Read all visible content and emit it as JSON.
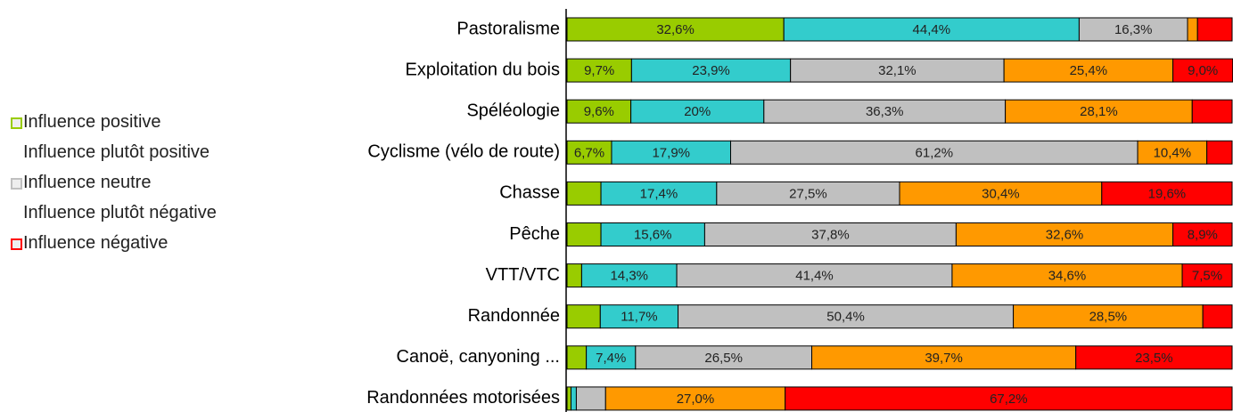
{
  "chart_data": {
    "type": "stacked_barh",
    "categories": [
      "Pastoralisme",
      "Exploitation du bois",
      "Spéléologie",
      "Cyclisme (vélo de route)",
      "Chasse",
      "Pêche",
      "VTT/VTC",
      "Randonnée",
      "Canoë, canyoning ...",
      "Randonnées motorisées"
    ],
    "xlim": [
      0,
      100
    ],
    "series": [
      {
        "name": "Influence positive",
        "color": "#99cc00",
        "values": [
          32.6,
          9.7,
          9.6,
          6.7,
          5.1,
          5.1,
          2.2,
          5.0,
          2.9,
          0.6
        ],
        "value_labels": [
          "32,6%",
          "9,7%",
          "9,6%",
          "6,7%",
          null,
          null,
          null,
          null,
          null,
          null
        ]
      },
      {
        "name": "Influence plutôt positive",
        "color": "#33cccc",
        "values": [
          44.4,
          23.9,
          20,
          17.9,
          17.4,
          15.6,
          14.3,
          11.7,
          7.4,
          0.8
        ],
        "value_labels": [
          "44,4%",
          "23,9%",
          "20%",
          "17,9%",
          "17,4%",
          "15,6%",
          "14,3%",
          "11,7%",
          "7,4%",
          null
        ]
      },
      {
        "name": "Influence neutre",
        "color": "#c0c0c0",
        "values": [
          16.3,
          32.1,
          36.3,
          61.2,
          27.5,
          37.8,
          41.4,
          50.4,
          26.5,
          4.4
        ],
        "value_labels": [
          "16,3%",
          "32,1%",
          "36,3%",
          "61,2%",
          "27,5%",
          "37,8%",
          "41,4%",
          "50,4%",
          "26,5%",
          null
        ]
      },
      {
        "name": "Influence plutôt négative",
        "color": "#ff9900",
        "values": [
          1.5,
          25.4,
          28.1,
          10.4,
          30.4,
          32.6,
          34.6,
          28.5,
          39.7,
          27.0
        ],
        "value_labels": [
          null,
          "25,4%",
          "28,1%",
          "10,4%",
          "30,4%",
          "32,6%",
          "34,6%",
          "28,5%",
          "39,7%",
          "27,0%"
        ]
      },
      {
        "name": "Influence négative",
        "color": "#ff0000",
        "values": [
          5.2,
          9.0,
          6.0,
          3.8,
          19.6,
          8.9,
          7.5,
          4.4,
          23.5,
          67.2
        ],
        "value_labels": [
          null,
          "9,0%",
          null,
          null,
          "19,6%",
          "8,9%",
          "7,5%",
          null,
          "23,5%",
          "67,2%"
        ]
      }
    ]
  }
}
